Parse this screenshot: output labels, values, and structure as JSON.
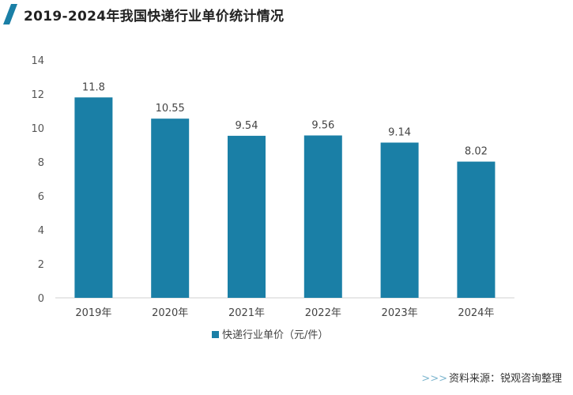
{
  "header": {
    "title": "2019-2024年我国快递行业单价统计情况"
  },
  "footer": {
    "arrows": ">>>",
    "source": "资料来源：锐观咨询整理"
  },
  "chart_data": {
    "type": "bar",
    "title": "2019-2024年我国快递行业单价统计情况",
    "categories": [
      "2019年",
      "2020年",
      "2021年",
      "2022年",
      "2023年",
      "2024年"
    ],
    "series": [
      {
        "name": "快递行业单价（元/件）",
        "values": [
          11.8,
          10.55,
          9.54,
          9.56,
          9.14,
          8.02
        ]
      }
    ],
    "data_labels": [
      "11.8",
      "10.55",
      "9.54",
      "9.56",
      "9.14",
      "8.02"
    ],
    "yticks": [
      "0",
      "2",
      "4",
      "6",
      "8",
      "10",
      "12",
      "14"
    ],
    "ylim": [
      0,
      14
    ],
    "grid": false,
    "legend": "bottom",
    "colors": {
      "bar": "#1a7fa6",
      "accent": "#1a7fa6"
    }
  }
}
